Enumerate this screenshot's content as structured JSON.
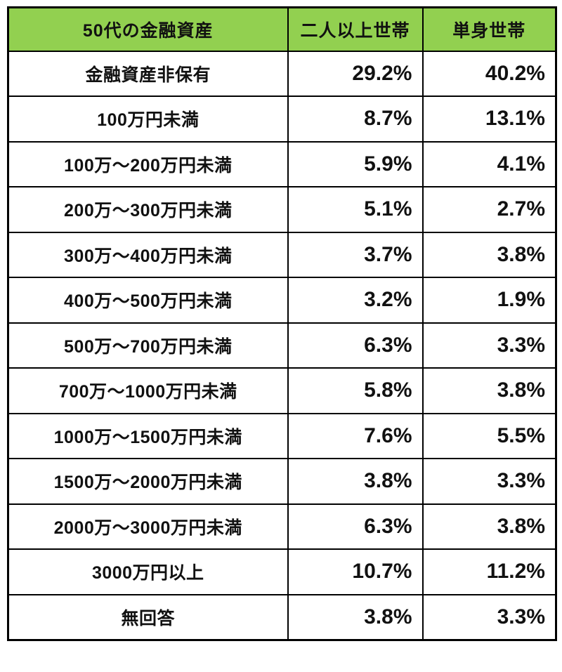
{
  "colors": {
    "header_bg": "#92D050",
    "border": "#000000",
    "text": "#111111",
    "row_bg": "#ffffff"
  },
  "table": {
    "header": {
      "category": "50代の金融資産",
      "two_person": "二人以上世帯",
      "single": "単身世帯"
    },
    "rows": [
      {
        "label": "金融資産非保有",
        "two_person": "29.2%",
        "single": "40.2%"
      },
      {
        "label": "100万円未満",
        "two_person": "8.7%",
        "single": "13.1%"
      },
      {
        "label": "100万〜200万円未満",
        "two_person": "5.9%",
        "single": "4.1%"
      },
      {
        "label": "200万〜300万円未満",
        "two_person": "5.1%",
        "single": "2.7%"
      },
      {
        "label": "300万〜400万円未満",
        "two_person": "3.7%",
        "single": "3.8%"
      },
      {
        "label": "400万〜500万円未満",
        "two_person": "3.2%",
        "single": "1.9%"
      },
      {
        "label": "500万〜700万円未満",
        "two_person": "6.3%",
        "single": "3.3%"
      },
      {
        "label": "700万〜1000万円未満",
        "two_person": "5.8%",
        "single": "3.8%"
      },
      {
        "label": "1000万〜1500万円未満",
        "two_person": "7.6%",
        "single": "5.5%"
      },
      {
        "label": "1500万〜2000万円未満",
        "two_person": "3.8%",
        "single": "3.3%"
      },
      {
        "label": "2000万〜3000万円未満",
        "two_person": "6.3%",
        "single": "3.8%"
      },
      {
        "label": "3000万円以上",
        "two_person": "10.7%",
        "single": "11.2%"
      },
      {
        "label": "無回答",
        "two_person": "3.8%",
        "single": "3.3%"
      }
    ]
  },
  "chart_data": {
    "type": "table",
    "title": "50代の金融資産",
    "columns": [
      "50代の金融資産",
      "二人以上世帯",
      "単身世帯"
    ],
    "categories": [
      "金融資産非保有",
      "100万円未満",
      "100万〜200万円未満",
      "200万〜300万円未満",
      "300万〜400万円未満",
      "400万〜500万円未満",
      "500万〜700万円未満",
      "700万〜1000万円未満",
      "1000万〜1500万円未満",
      "1500万〜2000万円未満",
      "2000万〜3000万円未満",
      "3000万円以上",
      "無回答"
    ],
    "series": [
      {
        "name": "二人以上世帯",
        "values": [
          29.2,
          8.7,
          5.9,
          5.1,
          3.7,
          3.2,
          6.3,
          5.8,
          7.6,
          3.8,
          6.3,
          10.7,
          3.8
        ]
      },
      {
        "name": "単身世帯",
        "values": [
          40.2,
          13.1,
          4.1,
          2.7,
          3.8,
          1.9,
          3.3,
          3.8,
          5.5,
          3.3,
          3.8,
          11.2,
          3.3
        ]
      }
    ],
    "unit": "%"
  }
}
